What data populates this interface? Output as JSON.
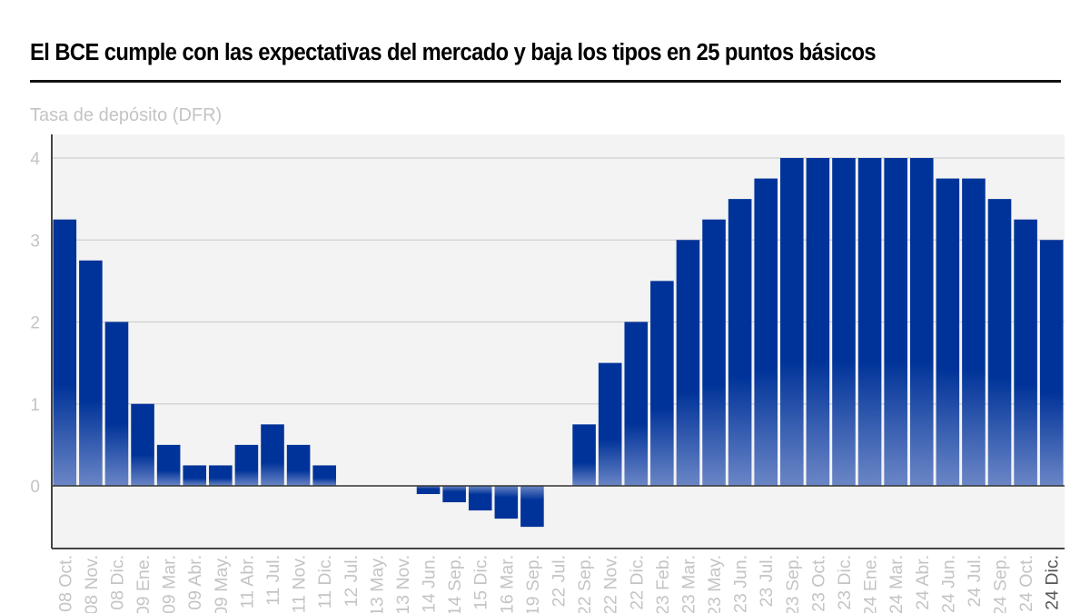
{
  "header": {
    "title": "El BCE cumple con las expectativas del mercado y baja los tipos en 25 puntos básicos",
    "subtitle": "Tasa de depósito (DFR)"
  },
  "colors": {
    "bar_top": "#003399",
    "bar_bottom": "#6b86c6",
    "plot_bg": "#f3f3f3",
    "grid": "#cfcfcf",
    "tick_label": "#c4c4c4",
    "highlight_label": "#555555"
  },
  "chart_data": {
    "type": "bar",
    "title": "El BCE cumple con las expectativas del mercado y baja los tipos en 25 puntos básicos",
    "ylabel": "Tasa de depósito (DFR)",
    "xlabel": "",
    "ylim": [
      -0.76,
      4.27
    ],
    "yticks": [
      0,
      1,
      2,
      3,
      4
    ],
    "grid": true,
    "categories": [
      "08 Oct.",
      "08 Nov.",
      "08 Dic.",
      "09 Ene.",
      "09 Mar.",
      "09 Abr.",
      "09 May.",
      "11 Abr.",
      "11 Jul.",
      "11 Nov.",
      "11 Dic.",
      "12 Jul.",
      "13 May.",
      "13 Nov.",
      "14 Jun.",
      "14 Sep.",
      "15 Dic.",
      "16 Mar.",
      "19 Sep.",
      "22 Jul.",
      "22 Sep.",
      "22 Nov.",
      "22 Dic.",
      "23 Feb.",
      "23 Mar.",
      "23 May.",
      "23 Jun.",
      "23 Jul.",
      "23 Sep.",
      "23 Oct.",
      "23 Dic.",
      "24 Ene.",
      "24 Mar.",
      "24 Abr.",
      "24 Jun.",
      "24 Jul.",
      "24 Sep.",
      "24 Oct.",
      "24 Dic."
    ],
    "values": [
      3.25,
      2.75,
      2.0,
      1.0,
      0.5,
      0.25,
      0.25,
      0.5,
      0.75,
      0.5,
      0.25,
      0,
      0,
      0,
      -0.1,
      -0.2,
      -0.3,
      -0.4,
      -0.5,
      0,
      0.75,
      1.5,
      2.0,
      2.5,
      3.0,
      3.25,
      3.5,
      3.75,
      4.0,
      4.0,
      4.0,
      4.0,
      4.0,
      4.0,
      3.75,
      3.75,
      3.5,
      3.25,
      3.0
    ],
    "highlight_category": "24 Dic."
  }
}
